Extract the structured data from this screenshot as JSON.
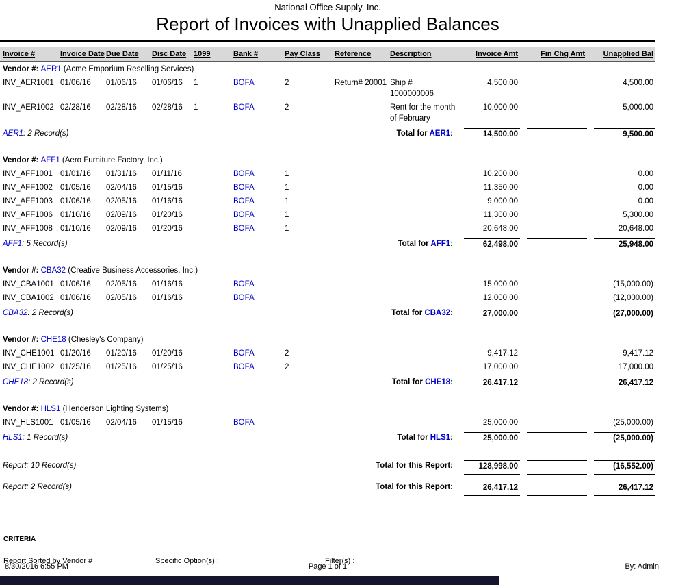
{
  "page": {
    "company": "National Office Supply, Inc.",
    "title": "Report of Invoices with Unapplied Balances"
  },
  "columns": [
    "Invoice #",
    "Invoice Date",
    "Due Date",
    "Disc Date",
    "1099",
    "Bank #",
    "Pay Class",
    "Reference",
    "Description",
    "Invoice Amt",
    "Fin Chg Amt",
    "Unapplied Bal"
  ],
  "groups": [
    {
      "vendor_prefix": "Vendor #:",
      "code": "AER1",
      "name": "(Acme Emporium Reselling Services)",
      "rows": [
        [
          "INV_AER1001",
          "01/06/16",
          "01/06/16",
          "01/06/16",
          "1",
          "BOFA",
          "2",
          "Return# 20001",
          "Ship # 1000000006",
          "4,500.00",
          "",
          "4,500.00"
        ],
        [
          "INV_AER1002",
          "02/28/16",
          "02/28/16",
          "02/28/16",
          "1",
          "BOFA",
          "2",
          "",
          "Rent for the month of February",
          "10,000.00",
          "",
          "5,000.00"
        ]
      ],
      "count_code": "AER1",
      "count_rest": ": 2 Record(s)",
      "total_prefix": "Total for ",
      "total_code": "AER1",
      "total_suffix": ":",
      "totals": [
        "14,500.00",
        "",
        "9,500.00"
      ]
    },
    {
      "vendor_prefix": "Vendor #:",
      "code": "AFF1",
      "name": "(Aero Furniture Factory, Inc.)",
      "rows": [
        [
          "INV_AFF1001",
          "01/01/16",
          "01/31/16",
          "01/11/16",
          "",
          "BOFA",
          "1",
          "",
          "",
          "10,200.00",
          "",
          "0.00"
        ],
        [
          "INV_AFF1002",
          "01/05/16",
          "02/04/16",
          "01/15/16",
          "",
          "BOFA",
          "1",
          "",
          "",
          "11,350.00",
          "",
          "0.00"
        ],
        [
          "INV_AFF1003",
          "01/06/16",
          "02/05/16",
          "01/16/16",
          "",
          "BOFA",
          "1",
          "",
          "",
          "9,000.00",
          "",
          "0.00"
        ],
        [
          "INV_AFF1006",
          "01/10/16",
          "02/09/16",
          "01/20/16",
          "",
          "BOFA",
          "1",
          "",
          "",
          "11,300.00",
          "",
          "5,300.00"
        ],
        [
          "INV_AFF1008",
          "01/10/16",
          "02/09/16",
          "01/20/16",
          "",
          "BOFA",
          "1",
          "",
          "",
          "20,648.00",
          "",
          "20,648.00"
        ]
      ],
      "count_code": "AFF1",
      "count_rest": ": 5 Record(s)",
      "total_prefix": "Total for ",
      "total_code": "AFF1",
      "total_suffix": ":",
      "totals": [
        "62,498.00",
        "",
        "25,948.00"
      ]
    },
    {
      "vendor_prefix": "Vendor #:",
      "code": "CBA32",
      "name": "(Creative Business Accessories, Inc.)",
      "rows": [
        [
          "INV_CBA1001",
          "01/06/16",
          "02/05/16",
          "01/16/16",
          "",
          "BOFA",
          "",
          "",
          "",
          "15,000.00",
          "",
          "(15,000.00)"
        ],
        [
          "INV_CBA1002",
          "01/06/16",
          "02/05/16",
          "01/16/16",
          "",
          "BOFA",
          "",
          "",
          "",
          "12,000.00",
          "",
          "(12,000.00)"
        ]
      ],
      "count_code": "CBA32",
      "count_rest": ": 2 Record(s)",
      "total_prefix": "Total for ",
      "total_code": "CBA32",
      "total_suffix": ":",
      "totals": [
        "27,000.00",
        "",
        "(27,000.00)"
      ]
    },
    {
      "vendor_prefix": "Vendor #:",
      "code": "CHE18",
      "name": "(Chesley's Company)",
      "rows": [
        [
          "INV_CHE1001",
          "01/20/16",
          "01/20/16",
          "01/20/16",
          "",
          "BOFA",
          "2",
          "",
          "",
          "9,417.12",
          "",
          "9,417.12"
        ],
        [
          "INV_CHE1002",
          "01/25/16",
          "01/25/16",
          "01/25/16",
          "",
          "BOFA",
          "2",
          "",
          "",
          "17,000.00",
          "",
          "17,000.00"
        ]
      ],
      "count_code": "CHE18",
      "count_rest": ": 2 Record(s)",
      "total_prefix": "Total for ",
      "total_code": "CHE18",
      "total_suffix": ":",
      "totals": [
        "26,417.12",
        "",
        "26,417.12"
      ]
    },
    {
      "vendor_prefix": "Vendor #:",
      "code": "HLS1",
      "name": "(Henderson Lighting Systems)",
      "rows": [
        [
          "INV_HLS1001",
          "01/05/16",
          "02/04/16",
          "01/15/16",
          "",
          "BOFA",
          "",
          "",
          "",
          "25,000.00",
          "",
          "(25,000.00)"
        ]
      ],
      "count_code": "HLS1",
      "count_rest": ": 1 Record(s)",
      "total_prefix": "Total for ",
      "total_code": "HLS1",
      "total_suffix": ":",
      "totals": [
        "25,000.00",
        "",
        "(25,000.00)"
      ]
    }
  ],
  "report_totals": [
    {
      "count": "Report: 10 Record(s)",
      "label": "Total for this Report:",
      "amounts": [
        "128,998.00",
        "",
        "(16,552.00)"
      ]
    },
    {
      "count": "Report: 2 Record(s)",
      "label": "Total for this Report:",
      "amounts": [
        "26,417.12",
        "",
        "26,417.12"
      ]
    }
  ],
  "criteria": {
    "heading": "CRITERIA",
    "sorted": "Report Sorted by Vendor #",
    "specific": "Specific Option(s) :",
    "filters": "Filter(s) :"
  },
  "footer": {
    "datetime": "8/30/2016 6:55 PM",
    "page": "Page 1 of 1",
    "by": "By: Admin"
  }
}
